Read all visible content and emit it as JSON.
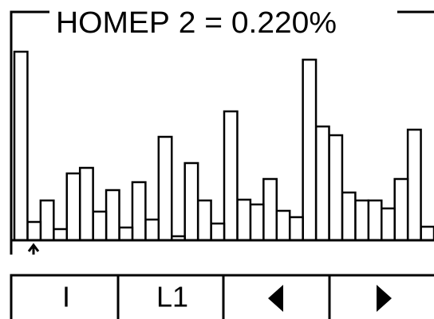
{
  "chart_data": {
    "type": "bar",
    "title": "НОМЕР 2 = 0.220%",
    "values": [
      237,
      23,
      50,
      14,
      84,
      91,
      36,
      63,
      16,
      73,
      26,
      130,
      5,
      97,
      50,
      21,
      162,
      51,
      45,
      77,
      37,
      29,
      227,
      143,
      132,
      60,
      50,
      50,
      40,
      77,
      139,
      17
    ],
    "color": "#ffffff",
    "ylim": [
      0,
      237
    ]
  },
  "buttons": [
    "I",
    "L1"
  ]
}
